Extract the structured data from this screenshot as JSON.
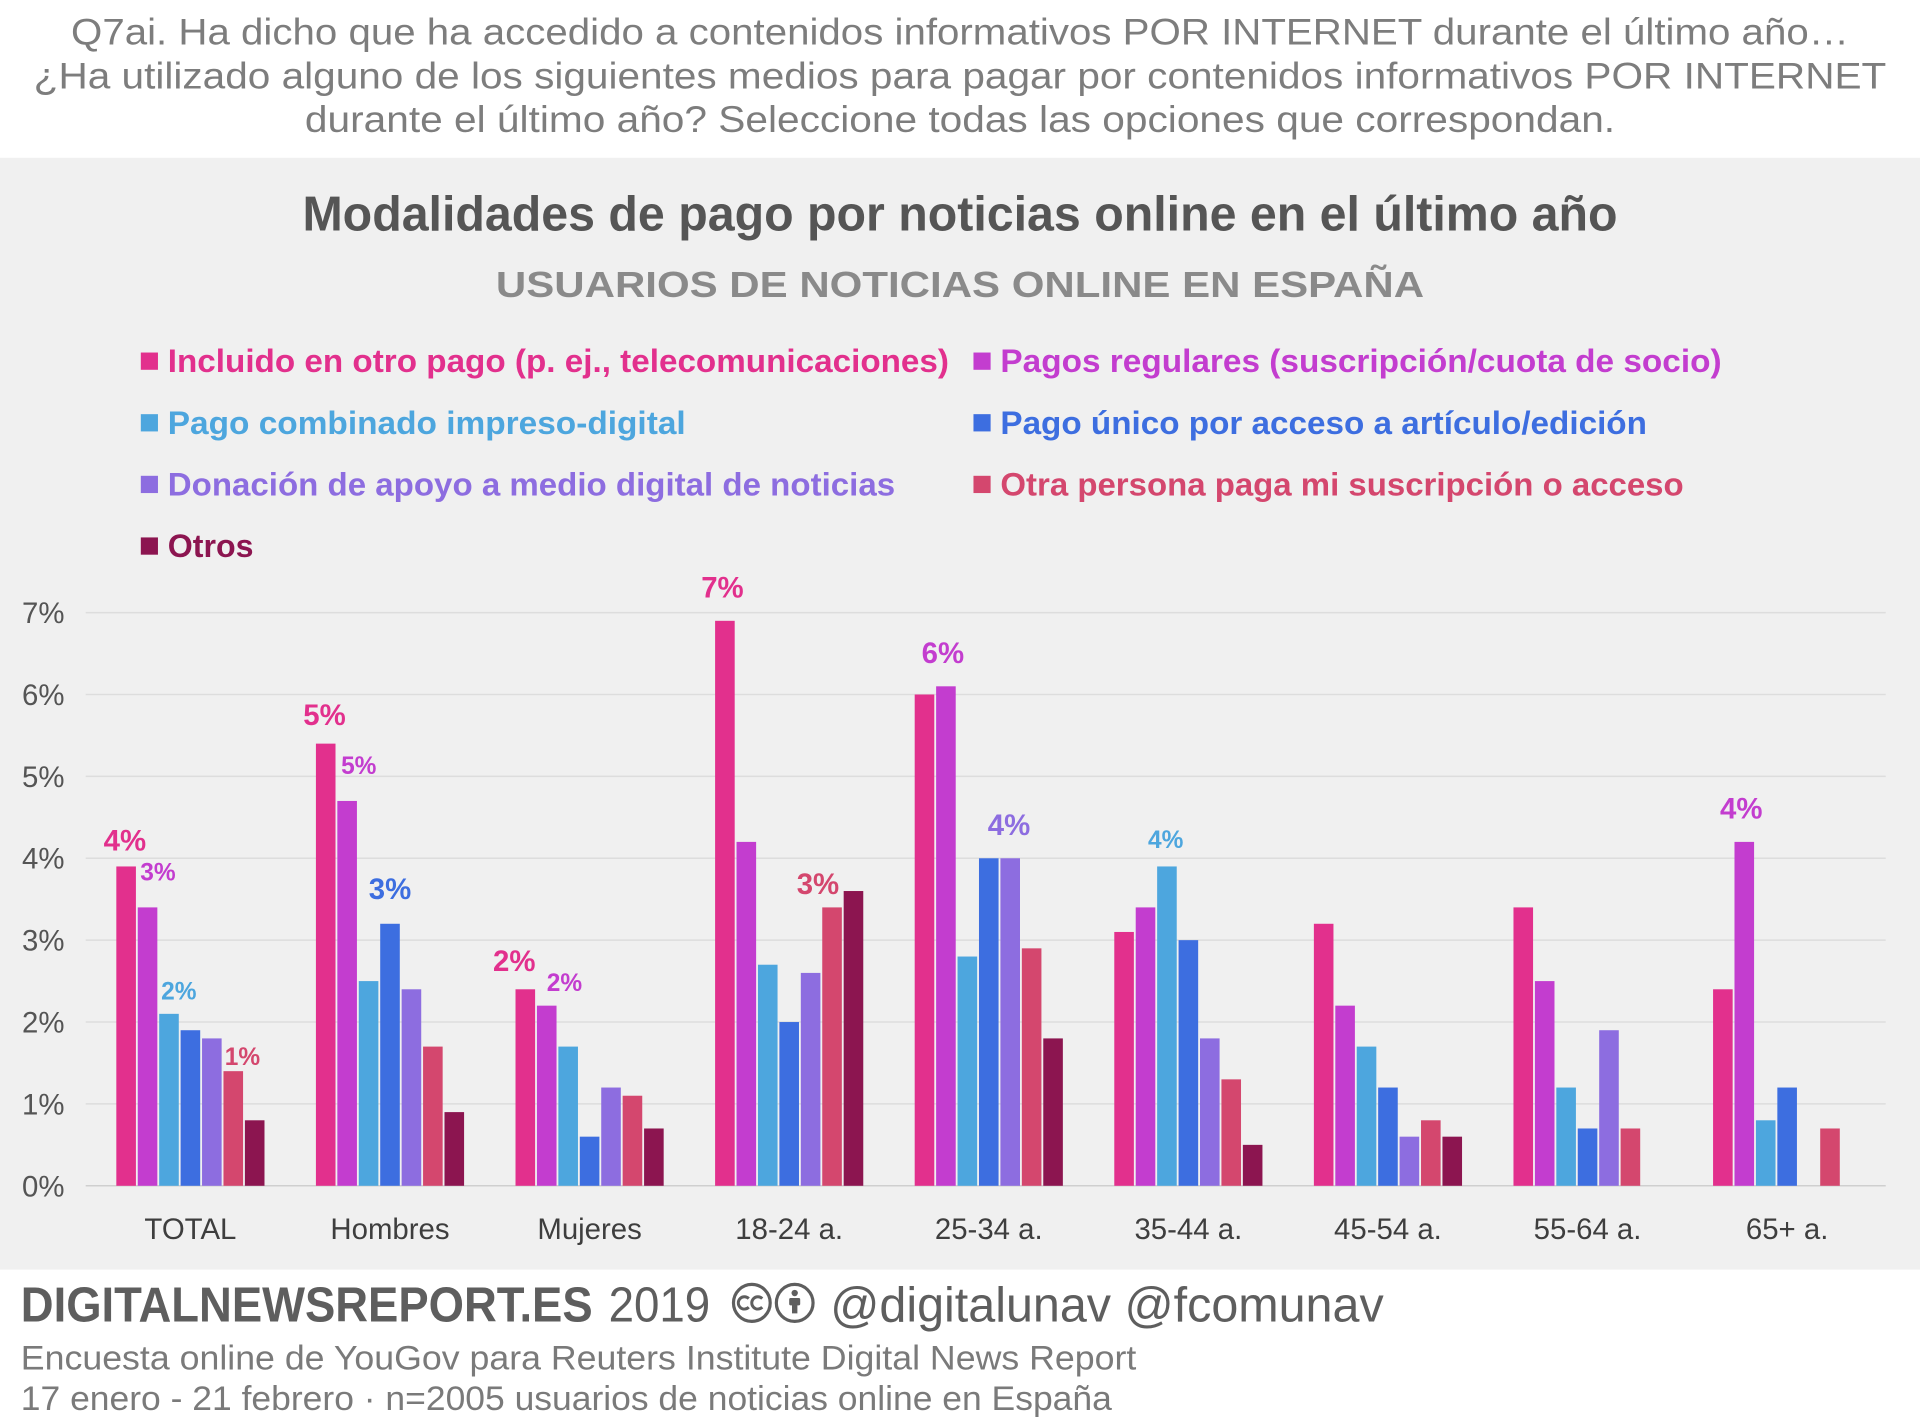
{
  "question": {
    "lines": [
      "Q7ai. Ha dicho que ha accedido a contenidos informativos POR INTERNET durante el último año…",
      "¿Ha utilizado alguno de los siguientes medios para pagar por contenidos informativos POR INTERNET",
      "durante el último año? Seleccione todas las opciones que correspondan."
    ]
  },
  "chart_data": {
    "type": "bar",
    "title": "Modalidades de pago por noticias online en el último año",
    "subtitle": "USUARIOS DE NOTICIAS ONLINE EN ESPAÑA",
    "categories": [
      "TOTAL",
      "Hombres",
      "Mujeres",
      "18-24 a.",
      "25-34 a.",
      "35-44 a.",
      "45-54 a.",
      "55-64 a.",
      "65+ a."
    ],
    "series": [
      {
        "name": "Incluido en otro pago (p. ej., telecomunicaciones)",
        "color": "#e2308d",
        "values": [
          3.9,
          5.4,
          2.4,
          6.9,
          6.0,
          3.1,
          3.2,
          3.4,
          2.4
        ]
      },
      {
        "name": "Pagos regulares (suscripción/cuota de socio)",
        "color": "#c33dcf",
        "values": [
          3.4,
          4.7,
          2.2,
          4.2,
          6.1,
          3.4,
          2.2,
          2.5,
          4.2
        ]
      },
      {
        "name": "Pago combinado impreso-digital",
        "color": "#4da6de",
        "values": [
          2.1,
          2.5,
          1.7,
          2.7,
          2.8,
          3.9,
          1.7,
          1.2,
          0.8
        ]
      },
      {
        "name": "Pago único por acceso a artículo/edición",
        "color": "#3d6ee0",
        "values": [
          1.9,
          3.2,
          0.6,
          2.0,
          4.0,
          3.0,
          1.2,
          0.7,
          1.2
        ]
      },
      {
        "name": "Donación de apoyo a medio digital de noticias",
        "color": "#8d6de0",
        "values": [
          1.8,
          2.4,
          1.2,
          2.6,
          4.0,
          1.8,
          0.6,
          1.9,
          null
        ]
      },
      {
        "name": "Otra persona paga mi suscripción o acceso",
        "color": "#d4476e",
        "values": [
          1.4,
          1.7,
          1.1,
          3.4,
          2.9,
          1.3,
          0.8,
          0.7,
          0.7
        ]
      },
      {
        "name": "Otros",
        "color": "#8c1550",
        "values": [
          0.8,
          0.9,
          0.7,
          3.6,
          1.8,
          0.5,
          0.6,
          null,
          null
        ]
      }
    ],
    "yaxis": {
      "ylim": [
        0,
        7
      ],
      "ticks": [
        0,
        1,
        2,
        3,
        4,
        5,
        6,
        7
      ],
      "tick_labels": [
        "0%",
        "1%",
        "2%",
        "3%",
        "4%",
        "5%",
        "6%",
        "7%"
      ]
    },
    "grid": true,
    "legend_position": "top",
    "data_labels": [
      {
        "category_index": 0,
        "series_index": 0,
        "text": "4%"
      },
      {
        "category_index": 0,
        "series_index": 1,
        "text": "3%"
      },
      {
        "category_index": 0,
        "series_index": 2,
        "text": "2%"
      },
      {
        "category_index": 0,
        "series_index": 5,
        "text": "1%"
      },
      {
        "category_index": 1,
        "series_index": 0,
        "text": "5%"
      },
      {
        "category_index": 1,
        "series_index": 1,
        "text": "5%"
      },
      {
        "category_index": 1,
        "series_index": 3,
        "text": "3%"
      },
      {
        "category_index": 2,
        "series_index": 0,
        "text": "2%"
      },
      {
        "category_index": 2,
        "series_index": 1,
        "text": "2%"
      },
      {
        "category_index": 3,
        "series_index": 0,
        "text": "7%"
      },
      {
        "category_index": 3,
        "series_index": 5,
        "text": "3%"
      },
      {
        "category_index": 4,
        "series_index": 1,
        "text": "6%"
      },
      {
        "category_index": 4,
        "series_index": 4,
        "text": "4%"
      },
      {
        "category_index": 5,
        "series_index": 2,
        "text": "4%"
      },
      {
        "category_index": 8,
        "series_index": 1,
        "text": "4%"
      }
    ]
  },
  "footer": {
    "site": "DIGITALNEWSREPORT.ES",
    "year": "2019",
    "license_icons": [
      "cc-icon",
      "by-attribution-icon"
    ],
    "handles": "@digitalunav @fcomunav",
    "source": "Encuesta online de YouGov para Reuters Institute Digital News Report",
    "fieldwork": "17 enero - 21 febrero · n=2005 usuarios de noticias online en España"
  }
}
